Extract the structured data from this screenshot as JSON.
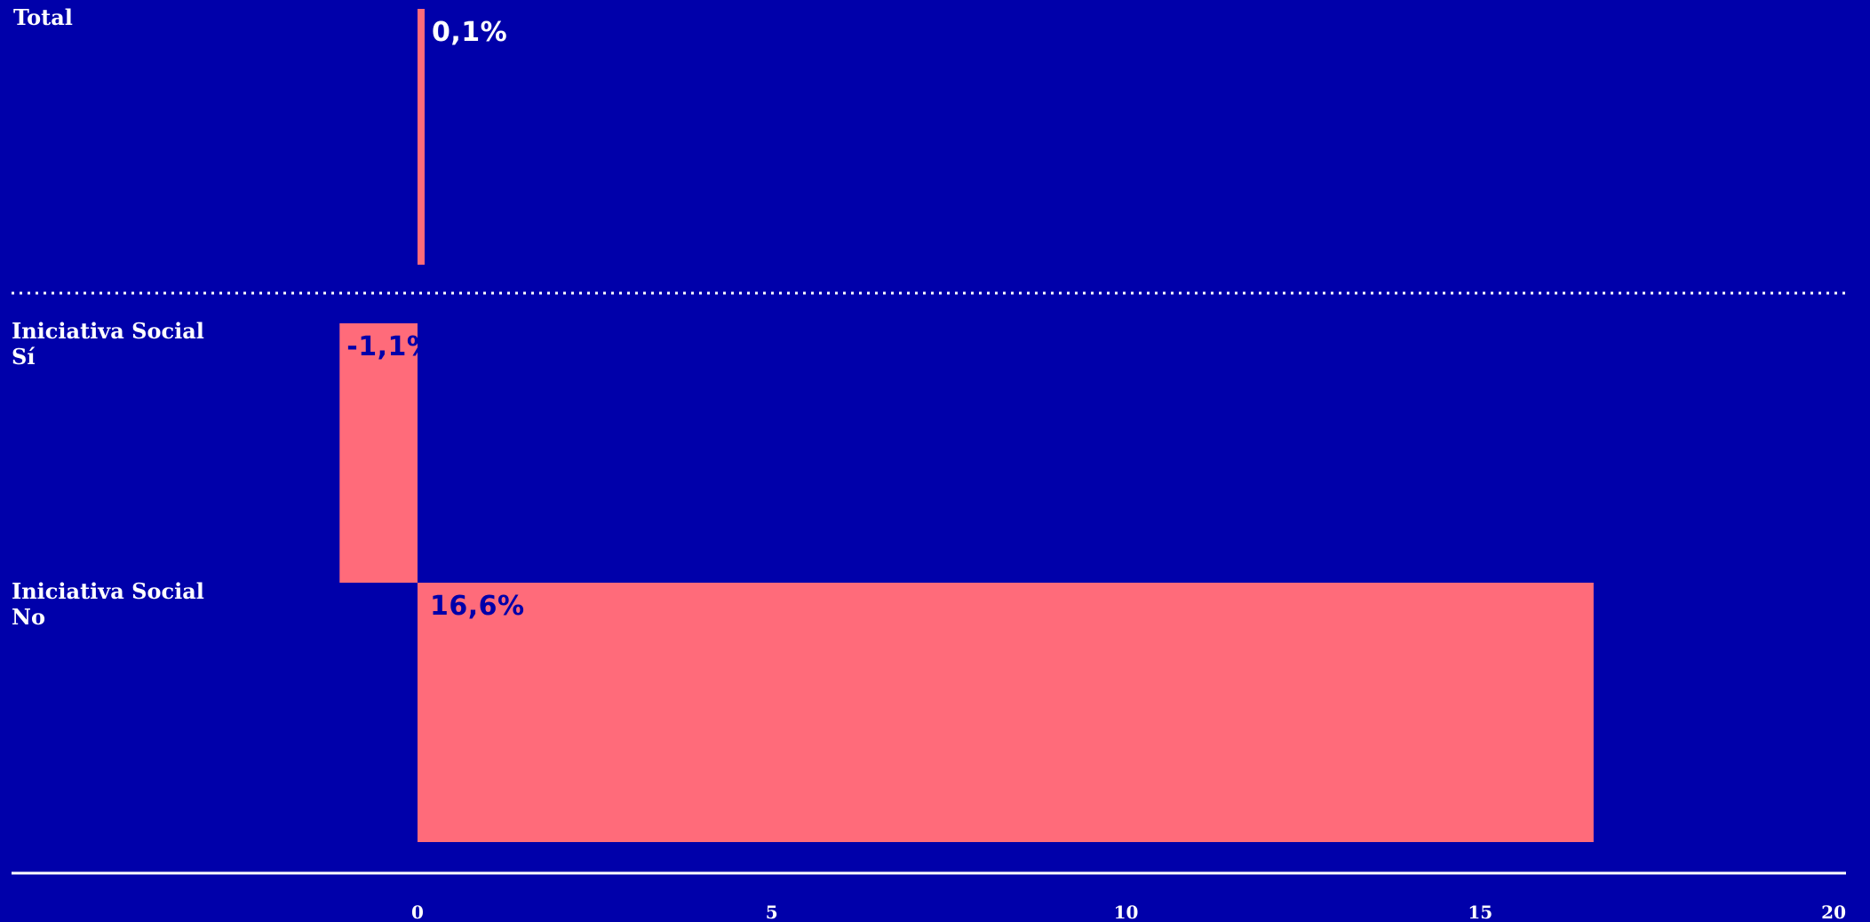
{
  "chart_data": {
    "type": "bar",
    "orientation": "horizontal",
    "categories": [
      {
        "id": "total",
        "lines": [
          "Total"
        ]
      },
      {
        "id": "si",
        "lines": [
          "Iniciativa Social",
          "Sí"
        ]
      },
      {
        "id": "no",
        "lines": [
          "Iniciativa Social",
          "No"
        ]
      }
    ],
    "values": [
      0.1,
      -1.1,
      16.6
    ],
    "data_labels": [
      "0,1%",
      "-1,1%",
      "16,6%"
    ],
    "xlim": [
      -1.1,
      20
    ],
    "xticks": [
      0,
      5,
      10,
      15,
      20
    ],
    "xtick_labels": [
      "0",
      "5",
      "10",
      "15",
      "20"
    ],
    "grid": false,
    "legend": "none",
    "colors": {
      "background": "#0000AA",
      "bar": "#FF6B7A",
      "label_on_bar": "#0000AA",
      "label_on_background": "#FFFFFF",
      "axis": "#FFFFFF",
      "separator": "#FFFFFF"
    }
  }
}
